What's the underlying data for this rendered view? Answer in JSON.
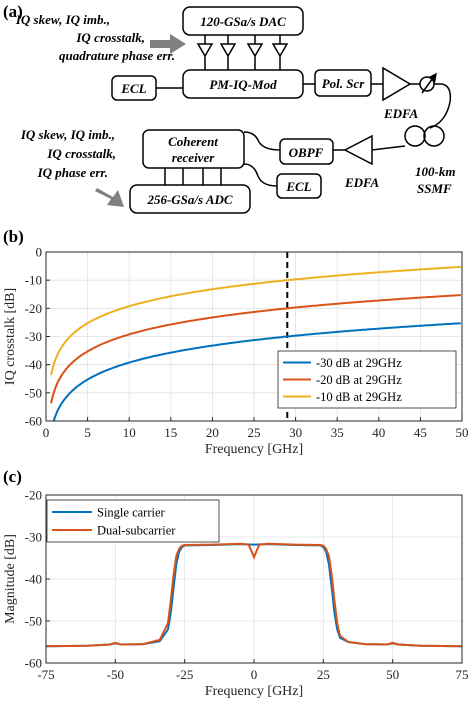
{
  "panel_a": {
    "tag": "(a)",
    "tx_impairments": [
      "IQ skew, IQ imb.,",
      "IQ crosstalk,",
      "quadrature phase err."
    ],
    "rx_impairments": [
      "IQ skew, IQ imb.,",
      "IQ crosstalk,",
      "IQ phase err."
    ],
    "dac": "120-GSa/s DAC",
    "pm_iq_mod": "PM-IQ-Mod",
    "ecl_tx": "ECL",
    "pol_scr": "Pol. Scr",
    "edfa_tx": "EDFA",
    "fiber_lines": [
      "100-km",
      "SSMF"
    ],
    "edfa_rx": "EDFA",
    "obpf": "OBPF",
    "ecl_rx": "ECL",
    "coherent_receiver_lines": [
      "Coherent",
      "receiver"
    ],
    "adc": "256-GSa/s ADC",
    "colors": {
      "arrow": "#808080",
      "stroke": "#000000"
    }
  },
  "panel_b": {
    "tag": "(b)",
    "xticks": [
      "0",
      "5",
      "10",
      "15",
      "20",
      "25",
      "30",
      "35",
      "40",
      "45",
      "50"
    ],
    "yticks": [
      "0",
      "-10",
      "-20",
      "-30",
      "-40",
      "-50",
      "-60"
    ],
    "marker_line": {
      "x": 29,
      "style": "dashed"
    }
  },
  "panel_c": {
    "tag": "(c)",
    "xticks": [
      "-75",
      "-50",
      "-25",
      "0",
      "25",
      "50",
      "75"
    ],
    "yticks": [
      "-20",
      "-30",
      "-40",
      "-50",
      "-60"
    ]
  },
  "chart_data": [
    {
      "type": "line",
      "xlabel": "Frequency [GHz]",
      "ylabel": "IQ crosstalk [dB]",
      "xlim": [
        0,
        50
      ],
      "ylim": [
        -60,
        0
      ],
      "grid": true,
      "legend_position": "bottom-right",
      "series": [
        {
          "name": "-30 dB at 29GHz",
          "color": "#0072BD",
          "model": "20log10(f/29)-30",
          "x": [
            2.7,
            3,
            4,
            5,
            7,
            10,
            15,
            20,
            25,
            29,
            35,
            40,
            45,
            50
          ],
          "values": [
            -50.6,
            -49.7,
            -47.2,
            -45.3,
            -42.3,
            -39.2,
            -35.7,
            -33.2,
            -31.3,
            -30,
            -28.4,
            -27.2,
            -26.2,
            -25.3
          ]
        },
        {
          "name": "-20 dB at 29GHz",
          "color": "#D95319",
          "model": "20log10(f/29)-20",
          "x": [
            1.7,
            2,
            3,
            4,
            5,
            7,
            10,
            15,
            20,
            25,
            29,
            35,
            40,
            45,
            50
          ],
          "values": [
            -44.6,
            -43.2,
            -39.7,
            -37.2,
            -35.3,
            -32.3,
            -29.2,
            -25.7,
            -23.2,
            -21.3,
            -20,
            -18.4,
            -17.2,
            -16.2,
            -15.3
          ]
        },
        {
          "name": "-10 dB at 29GHz",
          "color": "#EDB120",
          "model": "20log10(f/29)-10",
          "x": [
            1,
            1.5,
            2,
            3,
            4,
            5,
            7,
            10,
            15,
            20,
            25,
            29,
            35,
            40,
            45,
            50
          ],
          "values": [
            -39.2,
            -35.7,
            -33.2,
            -29.7,
            -27.2,
            -25.3,
            -22.3,
            -19.2,
            -15.7,
            -13.2,
            -11.3,
            -10,
            -8.4,
            -7.2,
            -6.2,
            -5.3
          ]
        }
      ]
    },
    {
      "type": "line",
      "xlabel": "Frequency [GHz]",
      "ylabel": "Magnitude [dB]",
      "xlim": [
        -75,
        75
      ],
      "ylim": [
        -60,
        -20
      ],
      "grid": true,
      "legend_position": "top-left",
      "series": [
        {
          "name": "Single carrier",
          "color": "#0072BD",
          "x": [
            -75,
            -60,
            -52,
            -50,
            -48,
            -40,
            -34,
            -31,
            -30,
            -29,
            -28,
            -27,
            -26,
            -25,
            -15,
            -5,
            0,
            5,
            15,
            24,
            25,
            26,
            27,
            28,
            29,
            30,
            31,
            34,
            40,
            48,
            50,
            52,
            60,
            75
          ],
          "values": [
            -56,
            -55.9,
            -55.6,
            -55.3,
            -55.6,
            -55.5,
            -54.8,
            -52,
            -48,
            -42,
            -36.5,
            -33.5,
            -32.4,
            -32,
            -31.9,
            -31.7,
            -31.8,
            -31.7,
            -31.9,
            -32,
            -32.4,
            -33.5,
            -36.5,
            -42,
            -48,
            -52,
            -54,
            -55,
            -55.5,
            -55.6,
            -55.3,
            -55.6,
            -55.9,
            -56
          ]
        },
        {
          "name": "Dual-subcarrier",
          "color": "#D95319",
          "x": [
            -75,
            -60,
            -52,
            -50,
            -48,
            -40,
            -34,
            -31,
            -30,
            -29,
            -28,
            -27,
            -26,
            -25,
            -15,
            -5,
            -2,
            -1,
            0,
            1,
            2,
            5,
            15,
            24,
            25,
            26,
            27,
            28,
            29,
            30,
            31,
            34,
            40,
            48,
            50,
            52,
            60,
            75
          ],
          "values": [
            -56,
            -55.9,
            -55.6,
            -55.2,
            -55.6,
            -55.5,
            -54.5,
            -50.5,
            -45,
            -39,
            -34.5,
            -32.8,
            -32.1,
            -31.9,
            -31.8,
            -31.6,
            -31.8,
            -33.2,
            -34.8,
            -33.2,
            -31.8,
            -31.6,
            -31.8,
            -31.9,
            -32.1,
            -32.8,
            -34.5,
            -39,
            -45,
            -50.5,
            -53.5,
            -55,
            -55.5,
            -55.6,
            -55.2,
            -55.6,
            -55.9,
            -56
          ]
        }
      ]
    }
  ]
}
